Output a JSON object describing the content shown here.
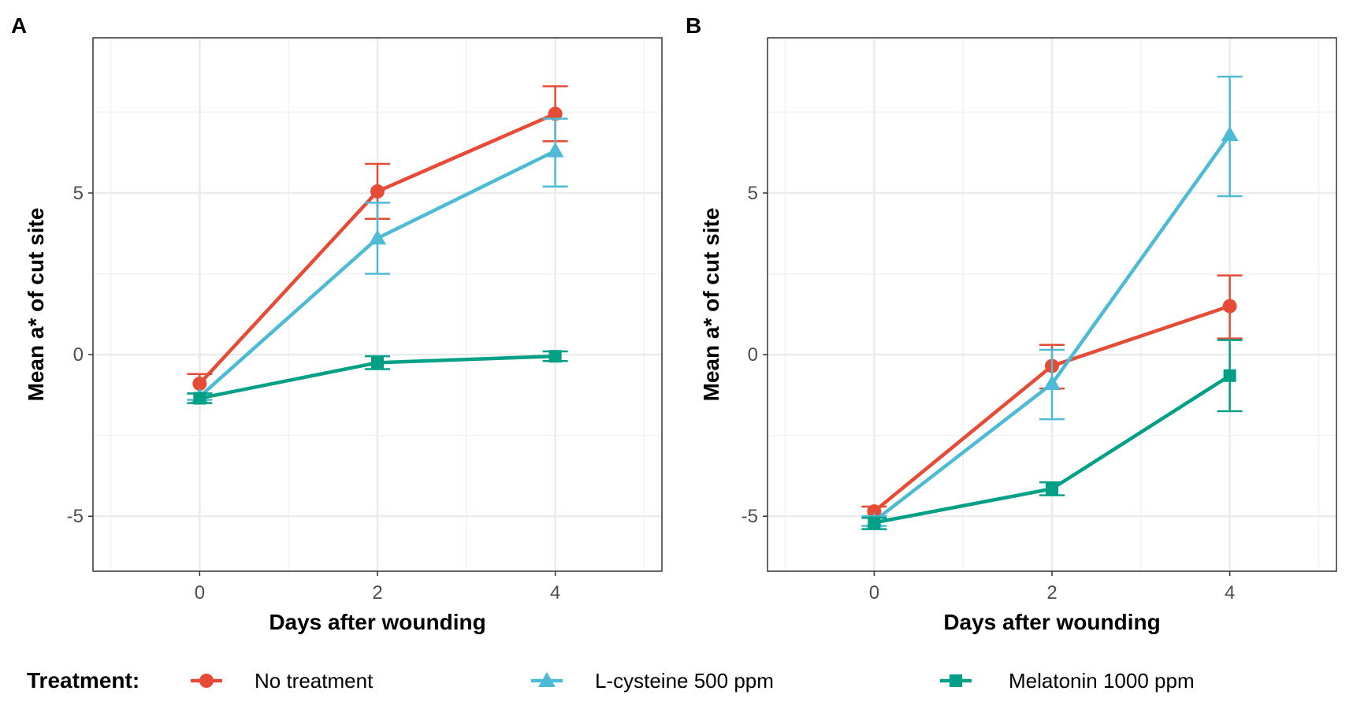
{
  "legend": {
    "title": "Treatment:",
    "entries": [
      {
        "label": "No treatment",
        "color": "#E64B35",
        "shape": "circle"
      },
      {
        "label": "L-cysteine 500 ppm",
        "color": "#4DBBD5",
        "shape": "triangle"
      },
      {
        "label": "Melatonin 1000 ppm",
        "color": "#00A087",
        "shape": "square"
      }
    ]
  },
  "chart_data": [
    {
      "type": "line",
      "panel": "A",
      "xlabel": "Days after wounding",
      "ylabel": "Mean a* of cut site",
      "xlim": [
        -1.2,
        5.2
      ],
      "ylim": [
        -6.7,
        9.8
      ],
      "xticks": [
        0,
        2,
        4
      ],
      "xtick_labels": [
        "0",
        "2",
        "4"
      ],
      "yticks": [
        -5,
        0,
        5
      ],
      "ytick_labels": [
        "-5",
        "0",
        "5"
      ],
      "grid": true,
      "x": [
        0,
        2,
        4
      ],
      "series": [
        {
          "name": "No treatment",
          "values": [
            -0.9,
            5.05,
            7.45
          ],
          "err_low": [
            -1.2,
            4.2,
            6.6
          ],
          "err_high": [
            -0.6,
            5.9,
            8.3
          ]
        },
        {
          "name": "L-cysteine 500 ppm",
          "values": [
            -1.3,
            3.6,
            6.3
          ],
          "err_low": [
            -1.4,
            2.5,
            5.2
          ],
          "err_high": [
            -1.2,
            4.7,
            7.3
          ]
        },
        {
          "name": "Melatonin 1000 ppm",
          "values": [
            -1.35,
            -0.25,
            -0.05
          ],
          "err_low": [
            -1.5,
            -0.45,
            -0.2
          ],
          "err_high": [
            -1.2,
            -0.05,
            0.1
          ]
        }
      ]
    },
    {
      "type": "line",
      "panel": "B",
      "xlabel": "Days after wounding",
      "ylabel": "Mean a* of cut site",
      "xlim": [
        -1.2,
        5.2
      ],
      "ylim": [
        -6.7,
        9.8
      ],
      "xticks": [
        0,
        2,
        4
      ],
      "xtick_labels": [
        "0",
        "2",
        "4"
      ],
      "yticks": [
        -5,
        0,
        5
      ],
      "ytick_labels": [
        "-5",
        "0",
        "5"
      ],
      "grid": true,
      "x": [
        0,
        2,
        4
      ],
      "series": [
        {
          "name": "No treatment",
          "values": [
            -4.85,
            -0.35,
            1.5
          ],
          "err_low": [
            -5.0,
            -1.05,
            0.5
          ],
          "err_high": [
            -4.7,
            0.3,
            2.45
          ]
        },
        {
          "name": "L-cysteine 500 ppm",
          "values": [
            -5.15,
            -0.9,
            6.8
          ],
          "err_low": [
            -5.3,
            -2.0,
            4.9
          ],
          "err_high": [
            -5.0,
            0.15,
            8.6
          ]
        },
        {
          "name": "Melatonin 1000 ppm",
          "values": [
            -5.2,
            -4.15,
            -0.65
          ],
          "err_low": [
            -5.4,
            -4.35,
            -1.75
          ],
          "err_high": [
            -5.05,
            -3.95,
            0.45
          ]
        }
      ]
    }
  ]
}
